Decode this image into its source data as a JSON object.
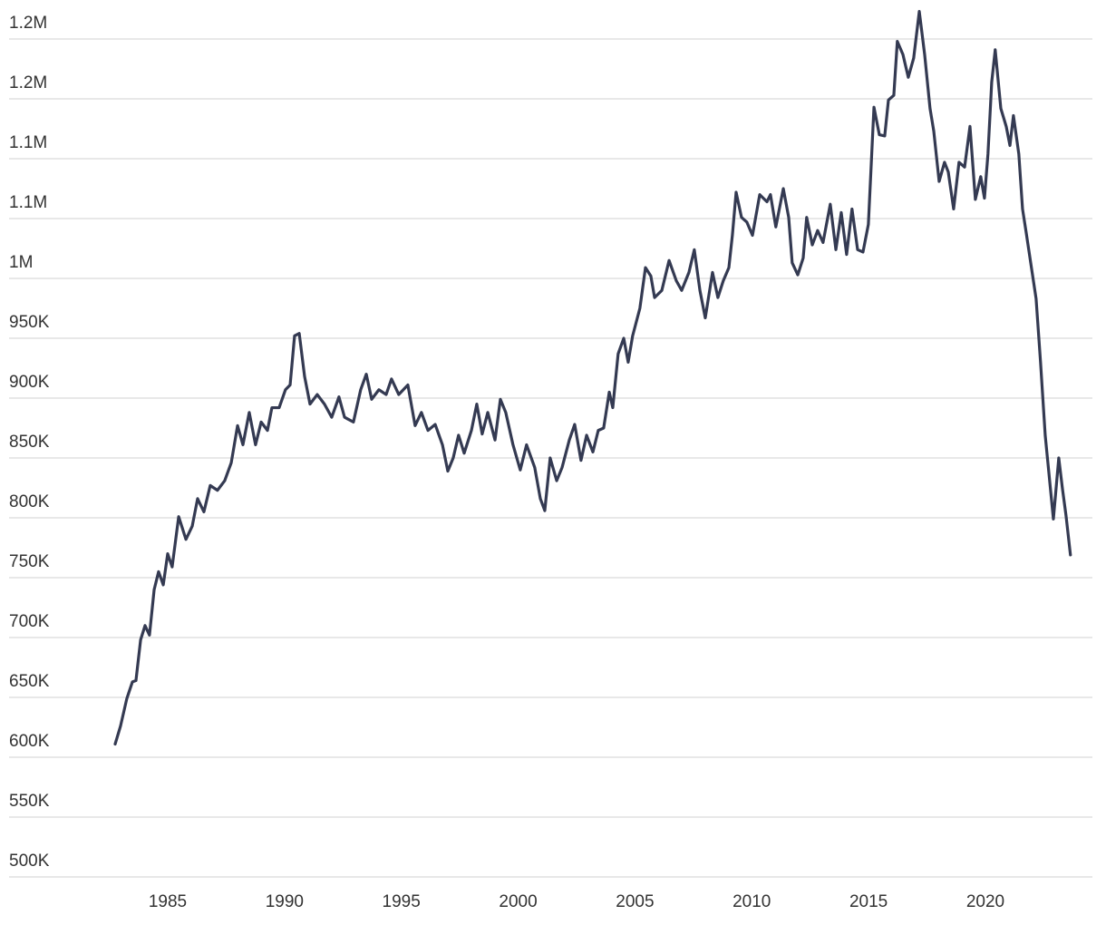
{
  "chart_data": {
    "type": "line",
    "x": [
      1982.75,
      1982.98,
      1983.25,
      1983.49,
      1983.64,
      1983.84,
      1984.03,
      1984.22,
      1984.42,
      1984.61,
      1984.81,
      1985.0,
      1985.19,
      1985.47,
      1985.78,
      1986.05,
      1986.28,
      1986.55,
      1986.82,
      1987.13,
      1987.44,
      1987.72,
      1987.99,
      1988.22,
      1988.49,
      1988.76,
      1989.0,
      1989.27,
      1989.46,
      1989.77,
      1990.04,
      1990.24,
      1990.43,
      1990.63,
      1990.86,
      1991.09,
      1991.4,
      1991.71,
      1992.02,
      1992.33,
      1992.57,
      1992.95,
      1993.26,
      1993.5,
      1993.73,
      1994.04,
      1994.35,
      1994.58,
      1994.89,
      1995.28,
      1995.59,
      1995.86,
      1996.14,
      1996.45,
      1996.76,
      1996.99,
      1997.22,
      1997.45,
      1997.69,
      1998.0,
      1998.23,
      1998.46,
      1998.7,
      1999.01,
      1999.24,
      1999.47,
      1999.78,
      2000.09,
      2000.36,
      2000.71,
      2000.95,
      2001.14,
      2001.37,
      2001.65,
      2001.88,
      2002.19,
      2002.42,
      2002.69,
      2002.93,
      2003.2,
      2003.43,
      2003.66,
      2003.9,
      2004.05,
      2004.28,
      2004.52,
      2004.71,
      2004.9,
      2005.21,
      2005.45,
      2005.68,
      2005.84,
      2006.15,
      2006.46,
      2006.77,
      2007.0,
      2007.31,
      2007.54,
      2007.78,
      2008.01,
      2008.32,
      2008.55,
      2008.78,
      2009.02,
      2009.17,
      2009.33,
      2009.56,
      2009.79,
      2010.03,
      2010.34,
      2010.65,
      2010.8,
      2011.03,
      2011.35,
      2011.58,
      2011.73,
      2011.97,
      2012.2,
      2012.35,
      2012.59,
      2012.82,
      2013.05,
      2013.36,
      2013.6,
      2013.83,
      2014.06,
      2014.29,
      2014.53,
      2014.76,
      2014.99,
      2015.23,
      2015.46,
      2015.69,
      2015.85,
      2016.08,
      2016.23,
      2016.47,
      2016.7,
      2016.93,
      2017.17,
      2017.4,
      2017.63,
      2017.79,
      2018.02,
      2018.25,
      2018.41,
      2018.64,
      2018.87,
      2019.11,
      2019.34,
      2019.57,
      2019.8,
      2019.96,
      2020.11,
      2020.27,
      2020.42,
      2020.66,
      2020.89,
      2021.05,
      2021.2,
      2021.43,
      2021.59,
      2021.74,
      2021.94,
      2022.17,
      2022.36,
      2022.56,
      2022.75,
      2022.91,
      2023.14,
      2023.3,
      2023.45,
      2023.64
    ],
    "series": [
      {
        "color": "#343a52",
        "values": [
          611000,
          626000,
          649000,
          663000,
          664000,
          698000,
          710000,
          702000,
          740000,
          755000,
          744000,
          770000,
          759000,
          801000,
          782000,
          793000,
          816000,
          805000,
          827000,
          823000,
          831000,
          846000,
          877000,
          861000,
          888000,
          861000,
          880000,
          873000,
          892000,
          892000,
          907000,
          911000,
          952000,
          954000,
          918000,
          895000,
          903000,
          895000,
          884000,
          901000,
          884000,
          880000,
          907000,
          920000,
          899000,
          907000,
          903000,
          916000,
          903000,
          911000,
          877000,
          888000,
          873000,
          878000,
          861000,
          839000,
          850000,
          869000,
          854000,
          873000,
          895000,
          870000,
          888000,
          865000,
          899000,
          888000,
          861000,
          840000,
          861000,
          842000,
          816000,
          806000,
          850000,
          831000,
          842000,
          865000,
          878000,
          848000,
          869000,
          855000,
          873000,
          875000,
          905000,
          892000,
          937000,
          950000,
          930000,
          952000,
          975000,
          1009000,
          1002000,
          984000,
          990000,
          1015000,
          998000,
          990000,
          1005000,
          1024000,
          990000,
          967000,
          1005000,
          984000,
          998000,
          1009000,
          1036000,
          1072000,
          1051000,
          1047000,
          1036000,
          1070000,
          1064000,
          1070000,
          1043000,
          1075000,
          1051000,
          1013000,
          1003000,
          1017000,
          1051000,
          1028000,
          1040000,
          1030000,
          1062000,
          1024000,
          1055000,
          1020000,
          1058000,
          1024000,
          1022000,
          1045000,
          1143000,
          1120000,
          1119000,
          1149000,
          1153000,
          1198000,
          1187000,
          1168000,
          1184000,
          1223000,
          1187000,
          1142000,
          1123000,
          1081000,
          1097000,
          1089000,
          1058000,
          1097000,
          1093000,
          1127000,
          1066000,
          1085000,
          1067000,
          1104000,
          1164000,
          1191000,
          1142000,
          1127000,
          1111000,
          1136000,
          1104000,
          1058000,
          1039000,
          1013000,
          983000,
          930000,
          869000,
          831000,
          799000,
          850000,
          824000,
          802000,
          769000
        ]
      }
    ],
    "xlim": [
      1978.21,
      2024.58
    ],
    "xticks": [
      1985,
      1990,
      1995,
      2000,
      2005,
      2010,
      2015,
      2020
    ],
    "ylim": [
      500000,
      1225000
    ],
    "yticks": [
      {
        "value": 500000,
        "label": "500K"
      },
      {
        "value": 550000,
        "label": "550K"
      },
      {
        "value": 600000,
        "label": "600K"
      },
      {
        "value": 650000,
        "label": "650K"
      },
      {
        "value": 700000,
        "label": "700K"
      },
      {
        "value": 750000,
        "label": "750K"
      },
      {
        "value": 800000,
        "label": "800K"
      },
      {
        "value": 850000,
        "label": "850K"
      },
      {
        "value": 900000,
        "label": "900K"
      },
      {
        "value": 950000,
        "label": "950K"
      },
      {
        "value": 1000000,
        "label": "1M"
      },
      {
        "value": 1050000,
        "label": "1.1M"
      },
      {
        "value": 1100000,
        "label": "1.1M"
      },
      {
        "value": 1150000,
        "label": "1.2M"
      },
      {
        "value": 1200000,
        "label": "1.2M"
      }
    ],
    "grid": true
  }
}
